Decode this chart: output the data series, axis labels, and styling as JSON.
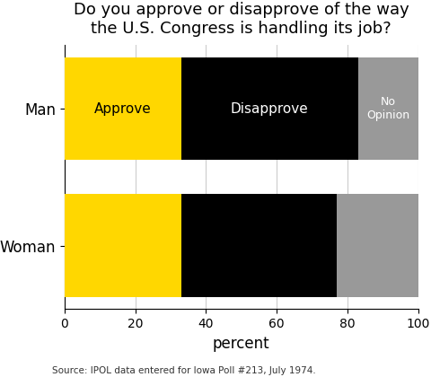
{
  "title": "Do you approve or disapprove of the way\nthe U.S. Congress is handling its job?",
  "categories": [
    "Man",
    "Woman"
  ],
  "approve": [
    33,
    33
  ],
  "disapprove": [
    50,
    44
  ],
  "no_opinion": [
    17,
    23
  ],
  "colors": {
    "approve": "#FFD700",
    "disapprove": "#000000",
    "no_opinion": "#999999"
  },
  "xlabel": "percent",
  "xlim": [
    0,
    100
  ],
  "xticks": [
    0,
    20,
    40,
    60,
    80,
    100
  ],
  "source": "Source: IPOL data entered for Iowa Poll #213, July 1974.",
  "bar_labels": {
    "approve": "Approve",
    "disapprove": "Disapprove",
    "no_opinion": "No\nOpinion"
  },
  "label_color_approve": "#000000",
  "label_color_disapprove": "#ffffff",
  "label_color_no_opinion": "#ffffff",
  "background_color": "#ffffff",
  "bar_height": 0.75,
  "title_fontsize": 13,
  "axis_label_fontsize": 12,
  "ytick_fontsize": 12,
  "source_fontsize": 7.5
}
